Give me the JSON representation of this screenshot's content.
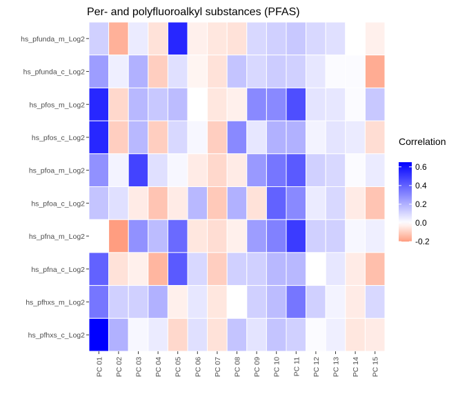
{
  "chart_data": {
    "type": "heatmap",
    "title": "Per- and polyfluoroalkyl substances (PFAS)",
    "xlabel": "",
    "ylabel": "",
    "x_categories": [
      "PC 01",
      "PC 02",
      "PC 03",
      "PC 04",
      "PC 05",
      "PC 06",
      "PC 07",
      "PC 08",
      "PC 09",
      "PC 10",
      "PC 11",
      "PC 12",
      "PC 13",
      "PC 14",
      "PC 15"
    ],
    "y_categories": [
      "hs_pfunda_m_Log2",
      "hs_pfunda_c_Log2",
      "hs_pfos_m_Log2",
      "hs_pfos_c_Log2",
      "hs_pfoa_m_Log2",
      "hs_pfoa_c_Log2",
      "hs_pfna_m_Log2",
      "hs_pfna_c_Log2",
      "hs_pfhxs_m_Log2",
      "hs_pfhxs_c_Log2"
    ],
    "values": [
      [
        0.12,
        -0.16,
        0.05,
        -0.06,
        0.55,
        -0.03,
        -0.05,
        -0.06,
        0.1,
        0.12,
        0.14,
        0.1,
        0.08,
        0.0,
        -0.03
      ],
      [
        0.25,
        0.04,
        0.2,
        -0.1,
        0.08,
        -0.02,
        -0.06,
        0.15,
        0.1,
        0.13,
        0.12,
        0.06,
        0.01,
        0.01,
        -0.17
      ],
      [
        0.55,
        -0.08,
        0.18,
        0.14,
        0.17,
        0.0,
        -0.05,
        -0.03,
        0.3,
        0.3,
        0.45,
        0.07,
        0.06,
        0.01,
        0.14
      ],
      [
        0.55,
        -0.1,
        0.18,
        -0.1,
        0.1,
        0.02,
        -0.1,
        0.3,
        0.06,
        0.2,
        0.2,
        0.03,
        0.07,
        0.05,
        -0.07
      ],
      [
        0.28,
        0.03,
        0.48,
        0.08,
        0.02,
        -0.04,
        -0.08,
        -0.04,
        0.26,
        0.35,
        0.42,
        0.12,
        0.1,
        0.01,
        0.05
      ],
      [
        0.15,
        0.08,
        -0.04,
        -0.12,
        -0.04,
        0.18,
        -0.11,
        0.2,
        -0.06,
        0.4,
        0.3,
        0.05,
        0.1,
        -0.04,
        -0.12
      ],
      [
        0.0,
        -0.2,
        0.28,
        0.17,
        0.38,
        -0.05,
        -0.07,
        -0.03,
        0.25,
        0.32,
        0.5,
        0.12,
        0.12,
        0.02,
        0.04
      ],
      [
        0.4,
        -0.06,
        -0.03,
        -0.15,
        0.42,
        0.1,
        -0.1,
        0.12,
        0.12,
        0.18,
        0.18,
        0.0,
        0.06,
        -0.04,
        -0.13
      ],
      [
        0.35,
        0.12,
        0.12,
        0.2,
        -0.03,
        0.06,
        -0.05,
        0.0,
        0.12,
        0.17,
        0.35,
        0.12,
        0.03,
        -0.04,
        0.1
      ],
      [
        0.65,
        0.2,
        0.02,
        0.05,
        -0.08,
        0.08,
        -0.06,
        0.15,
        0.07,
        0.15,
        0.12,
        0.01,
        0.04,
        -0.05,
        -0.04
      ]
    ],
    "value_range": [
      -0.2,
      0.65
    ],
    "colors": {
      "low": "#ff9d80",
      "mid": "#ffffff",
      "high": "#0000ff"
    },
    "legend": {
      "title": "Correlation",
      "position": "right",
      "ticks": [
        "0.6",
        "0.4",
        "0.2",
        "0.0",
        "-0.2"
      ],
      "tick_values": [
        0.6,
        0.4,
        0.2,
        0.0,
        -0.2
      ]
    },
    "grid": false
  }
}
